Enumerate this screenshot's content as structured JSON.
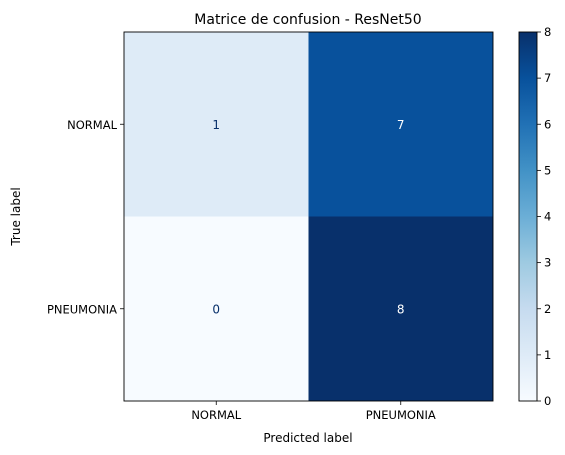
{
  "chart_data": {
    "type": "heatmap",
    "title": "Matrice de confusion - ResNet50",
    "xlabel": "Predicted label",
    "ylabel": "True label",
    "x_categories": [
      "NORMAL",
      "PNEUMONIA"
    ],
    "y_categories": [
      "NORMAL",
      "PNEUMONIA"
    ],
    "values": [
      [
        1,
        7
      ],
      [
        0,
        8
      ]
    ],
    "colormap": "Blues",
    "colorbar": {
      "min": 0,
      "max": 8,
      "ticks": [
        "0",
        "1",
        "2",
        "3",
        "4",
        "5",
        "6",
        "7",
        "8"
      ]
    },
    "grid": false
  }
}
